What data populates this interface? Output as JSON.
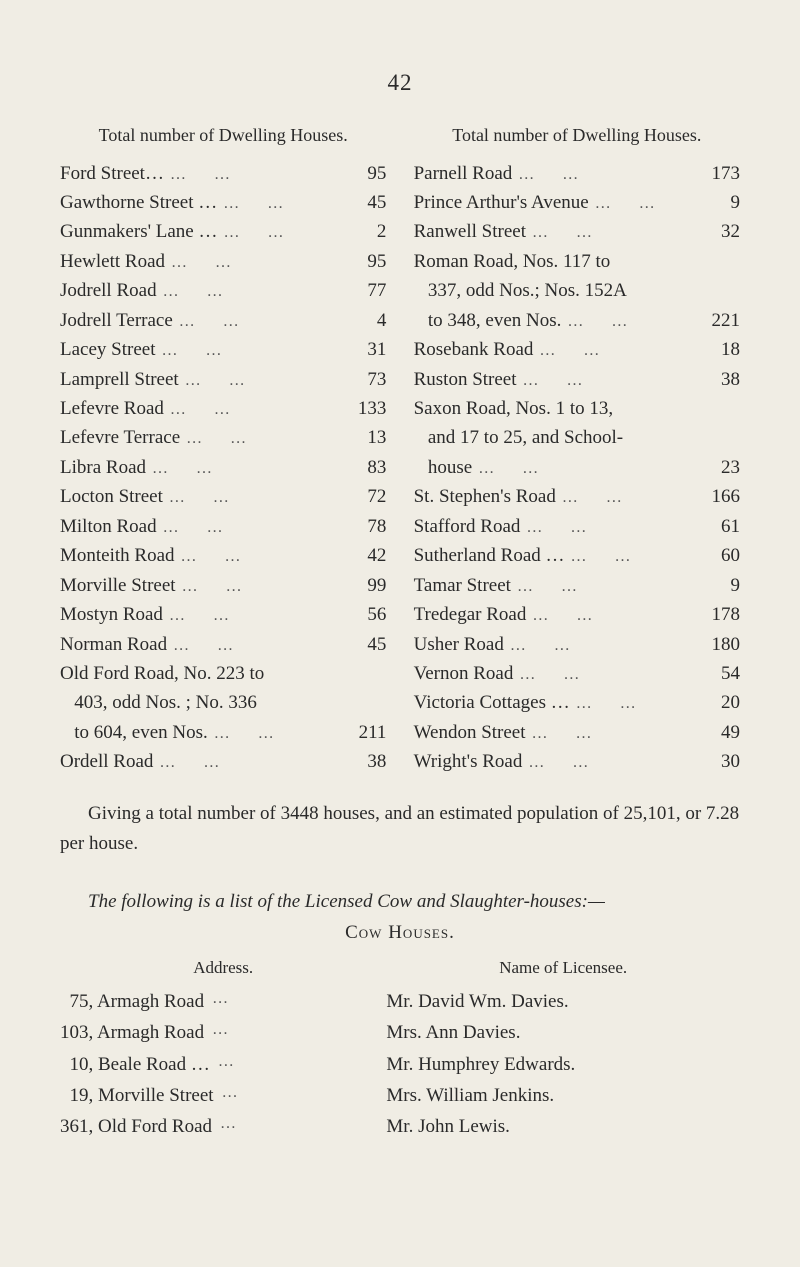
{
  "page_number": "42",
  "table_header": "Total number\nof Dwelling\nHouses.",
  "left_rows": [
    {
      "label": "Ford Street…",
      "value": "95"
    },
    {
      "label": "Gawthorne Street …",
      "value": "45"
    },
    {
      "label": "Gunmakers' Lane …",
      "value": "2"
    },
    {
      "label": "Hewlett Road",
      "value": "95"
    },
    {
      "label": "Jodrell Road",
      "value": "77"
    },
    {
      "label": "Jodrell Terrace",
      "value": "4"
    },
    {
      "label": "Lacey Street",
      "value": "31"
    },
    {
      "label": "Lamprell Street",
      "value": "73"
    },
    {
      "label": "Lefevre Road",
      "value": "133"
    },
    {
      "label": "Lefevre Terrace",
      "value": "13"
    },
    {
      "label": "Libra Road",
      "value": "83"
    },
    {
      "label": "Locton Street",
      "value": "72"
    },
    {
      "label": "Milton Road",
      "value": "78"
    },
    {
      "label": "Monteith Road",
      "value": "42"
    },
    {
      "label": "Morville Street",
      "value": "99"
    },
    {
      "label": "Mostyn Road",
      "value": "56"
    },
    {
      "label": "Norman Road",
      "value": "45"
    },
    {
      "label": "Old Ford Road, No. 223 to",
      "value": ""
    },
    {
      "label": "   403, odd Nos. ; No. 336",
      "value": ""
    },
    {
      "label": "   to 604, even Nos.",
      "value": "211"
    },
    {
      "label": "Ordell Road",
      "value": "38"
    }
  ],
  "right_rows": [
    {
      "label": "Parnell Road",
      "value": "173"
    },
    {
      "label": "Prince Arthur's Avenue",
      "value": "9"
    },
    {
      "label": "Ranwell Street",
      "value": "32"
    },
    {
      "label": "Roman Road, Nos. 117 to",
      "value": ""
    },
    {
      "label": "   337, odd Nos.; Nos. 152A",
      "value": ""
    },
    {
      "label": "   to 348, even Nos.",
      "value": "221"
    },
    {
      "label": "Rosebank Road",
      "value": "18"
    },
    {
      "label": "Ruston Street",
      "value": "38"
    },
    {
      "label": "Saxon Road, Nos. 1 to 13,",
      "value": ""
    },
    {
      "label": "   and 17 to 25, and School-",
      "value": ""
    },
    {
      "label": "   house",
      "value": "23"
    },
    {
      "label": "St. Stephen's Road",
      "value": "166"
    },
    {
      "label": "Stafford Road",
      "value": "61"
    },
    {
      "label": "Sutherland Road …",
      "value": "60"
    },
    {
      "label": "Tamar Street",
      "value": "9"
    },
    {
      "label": "Tredegar Road",
      "value": "178"
    },
    {
      "label": "Usher Road",
      "value": "180"
    },
    {
      "label": "Vernon Road",
      "value": "54"
    },
    {
      "label": "Victoria Cottages …",
      "value": "20"
    },
    {
      "label": "Wendon Street",
      "value": "49"
    },
    {
      "label": "Wright's Road",
      "value": "30"
    }
  ],
  "summary": "Giving a total number of 3448 houses, and an estimated population of 25,101, or 7.28 per house.",
  "subheading": "The following is a list of the Licensed Cow and Slaughter-houses:—",
  "cow_houses_title": "Cow Houses.",
  "licensee_header_left": "Address.",
  "licensee_header_right": "Name of Licensee.",
  "licensees": [
    {
      "address": "  75, Armagh Road",
      "name": "Mr. David Wm. Davies."
    },
    {
      "address": "103, Armagh Road",
      "name": "Mrs. Ann Davies."
    },
    {
      "address": "  10, Beale Road …",
      "name": "Mr. Humphrey Edwards."
    },
    {
      "address": "  19, Morville Street",
      "name": "Mrs. William Jenkins."
    },
    {
      "address": "361, Old Ford Road",
      "name": "Mr. John Lewis."
    }
  ]
}
